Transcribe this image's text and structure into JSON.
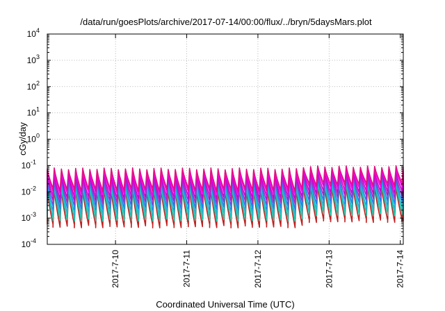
{
  "chart_data": {
    "type": "line",
    "title": "/data/run/goesPlots/archive/2017-07-14/00:00/flux/../bryn/5daysMars.plot",
    "xlabel": "Coordinated Universal Time (UTC)",
    "ylabel": "cGy/day",
    "y_scale": "log",
    "ylim": [
      0.0001,
      10000
    ],
    "y_ticks": [
      {
        "base": "10",
        "exp": "-4",
        "value": 0.0001
      },
      {
        "base": "10",
        "exp": "-3",
        "value": 0.001
      },
      {
        "base": "10",
        "exp": "-2",
        "value": 0.01
      },
      {
        "base": "10",
        "exp": "-1",
        "value": 0.1
      },
      {
        "base": "10",
        "exp": "0",
        "value": 1
      },
      {
        "base": "10",
        "exp": "1",
        "value": 10
      },
      {
        "base": "10",
        "exp": "2",
        "value": 100
      },
      {
        "base": "10",
        "exp": "3",
        "value": 1000
      },
      {
        "base": "10",
        "exp": "4",
        "value": 10000
      }
    ],
    "xlim": [
      "2017-07-09T01:00",
      "2017-07-14T01:00"
    ],
    "x_ticks": [
      {
        "label": "2017-7-10",
        "value": "2017-07-10T00:00"
      },
      {
        "label": "2017-7-11",
        "value": "2017-07-11T00:00"
      },
      {
        "label": "2017-7-12",
        "value": "2017-07-12T00:00"
      },
      {
        "label": "2017-7-13",
        "value": "2017-07-13T00:00"
      },
      {
        "label": "2017-7-14",
        "value": "2017-07-14T00:00"
      }
    ],
    "grid": true,
    "legend": "none",
    "pattern": {
      "description_source": "periodic sawtooth; sharp rise then decay, about 10 cycles per day",
      "period_hours": 2.4,
      "peaks": [
        0.075,
        0.06,
        0.045,
        0.035,
        0.028,
        0.022,
        0.016,
        0.012
      ],
      "troughs": [
        0.012,
        0.009,
        0.006,
        0.004,
        0.0025,
        0.0015,
        0.0009,
        0.0005
      ],
      "late_peaks": [
        0.09,
        0.075,
        0.06,
        0.045,
        0.035,
        0.028,
        0.022,
        0.016
      ],
      "late_start": "2017-07-12T14:00"
    },
    "series_colors": [
      "#e0117f",
      "#f500f5",
      "#cc00cc",
      "#9b30c8",
      "#2a7df0",
      "#1fb7d0",
      "#18c7a8",
      "#c02020"
    ]
  }
}
